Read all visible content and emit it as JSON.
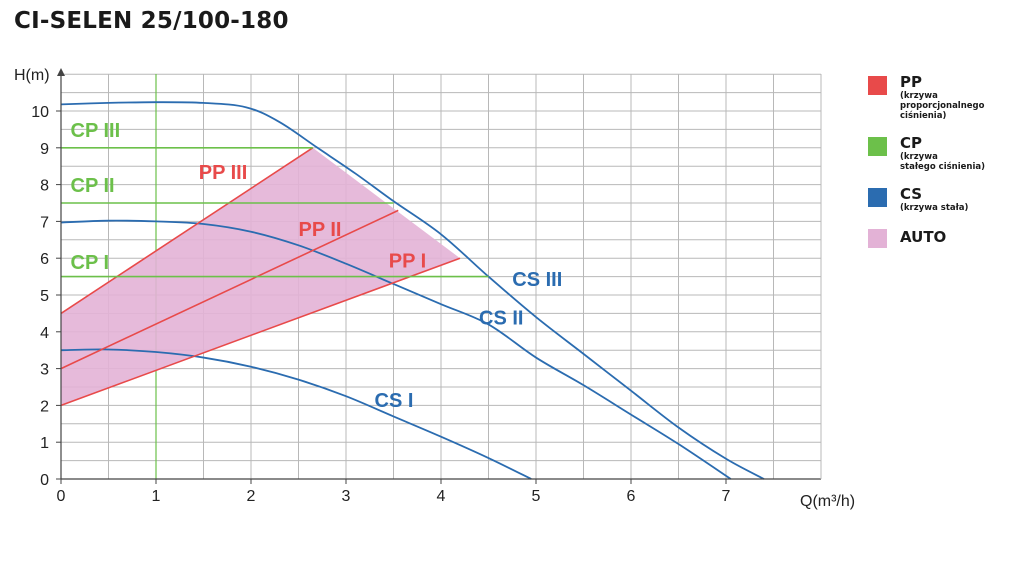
{
  "title": "CI-SELEN 25/100-180",
  "legend": [
    {
      "name": "PP",
      "desc_lines": [
        "(krzywa",
        "proporcjonalnego",
        "ciśnienia)"
      ],
      "color": "#e84a4a"
    },
    {
      "name": "CP",
      "desc_lines": [
        "(krzywa",
        "stałego ciśnienia)"
      ],
      "color": "#6cc04a"
    },
    {
      "name": "CS",
      "desc_lines": [
        "(krzywa stała)"
      ],
      "color": "#2b6cb0"
    },
    {
      "name": "AUTO",
      "desc_lines": [],
      "color": "#e3b2d6"
    }
  ],
  "chart_data": {
    "type": "line",
    "xlabel": "Q(m³/h)",
    "ylabel": "H(m)",
    "xlim": [
      0,
      8
    ],
    "ylim": [
      0,
      11
    ],
    "xticks": [
      0,
      1,
      2,
      3,
      4,
      5,
      6,
      7
    ],
    "yticks": [
      0,
      1,
      2,
      3,
      4,
      5,
      6,
      7,
      8,
      9,
      10
    ],
    "grid": true,
    "colors": {
      "cs": "#2b6cb0",
      "pp": "#e84a4a",
      "cp": "#6cc04a",
      "auto_fill": "#e3b2d6"
    },
    "series": [
      {
        "name": "CS I",
        "group": "cs",
        "x": [
          0,
          0.5,
          1,
          1.5,
          2,
          2.5,
          3,
          3.5,
          4,
          4.5,
          4.95
        ],
        "y": [
          3.5,
          3.52,
          3.45,
          3.3,
          3.05,
          2.7,
          2.25,
          1.7,
          1.15,
          0.57,
          0
        ]
      },
      {
        "name": "CS II",
        "group": "cs",
        "x": [
          0,
          0.5,
          1,
          1.5,
          2,
          2.5,
          3,
          3.5,
          4,
          4.5,
          5,
          5.5,
          6,
          6.5,
          7.05
        ],
        "y": [
          6.97,
          7.02,
          7.0,
          6.93,
          6.72,
          6.35,
          5.85,
          5.3,
          4.75,
          4.2,
          3.3,
          2.55,
          1.75,
          0.95,
          0
        ]
      },
      {
        "name": "CS III",
        "group": "cs",
        "x": [
          0,
          0.5,
          1,
          1.5,
          1.95,
          2.3,
          2.7,
          3.1,
          3.5,
          4.0,
          4.5,
          5.0,
          5.5,
          6.0,
          6.5,
          7.0,
          7.4
        ],
        "y": [
          10.18,
          10.22,
          10.24,
          10.22,
          10.1,
          9.7,
          9.0,
          8.3,
          7.55,
          6.65,
          5.5,
          4.4,
          3.4,
          2.4,
          1.4,
          0.55,
          0
        ]
      },
      {
        "name": "PP I",
        "group": "pp",
        "x": [
          0,
          4.2
        ],
        "y": [
          2.0,
          6.0
        ]
      },
      {
        "name": "PP II",
        "group": "pp",
        "x": [
          0,
          3.55
        ],
        "y": [
          3.0,
          7.3
        ]
      },
      {
        "name": "PP III",
        "group": "pp",
        "x": [
          0,
          2.65
        ],
        "y": [
          4.5,
          9.0
        ]
      },
      {
        "name": "CP I",
        "group": "cp",
        "x": [
          0,
          4.5
        ],
        "y": [
          5.5,
          5.5
        ]
      },
      {
        "name": "CP II",
        "group": "cp",
        "x": [
          0,
          3.5
        ],
        "y": [
          7.5,
          7.5
        ]
      },
      {
        "name": "CP III",
        "group": "cp",
        "x": [
          0,
          2.65
        ],
        "y": [
          9.0,
          9.0
        ]
      }
    ],
    "auto_region": {
      "x": [
        0,
        2.65,
        4.2,
        0
      ],
      "y": [
        4.5,
        9.0,
        6.0,
        2.0
      ]
    },
    "extra_vline_x": 1,
    "annotations": [
      {
        "text": "CP III",
        "x": 0.1,
        "y": 9.3,
        "group": "cp"
      },
      {
        "text": "CP II",
        "x": 0.1,
        "y": 7.8,
        "group": "cp"
      },
      {
        "text": "CP I",
        "x": 0.1,
        "y": 5.7,
        "group": "cp"
      },
      {
        "text": "PP III",
        "x": 1.45,
        "y": 8.15,
        "group": "pp"
      },
      {
        "text": "PP II",
        "x": 2.5,
        "y": 6.6,
        "group": "pp"
      },
      {
        "text": "PP I",
        "x": 3.45,
        "y": 5.75,
        "group": "pp"
      },
      {
        "text": "CS III",
        "x": 4.75,
        "y": 5.25,
        "group": "cs"
      },
      {
        "text": "CS II",
        "x": 4.4,
        "y": 4.2,
        "group": "cs"
      },
      {
        "text": "CS I",
        "x": 3.3,
        "y": 1.95,
        "group": "cs"
      }
    ]
  }
}
